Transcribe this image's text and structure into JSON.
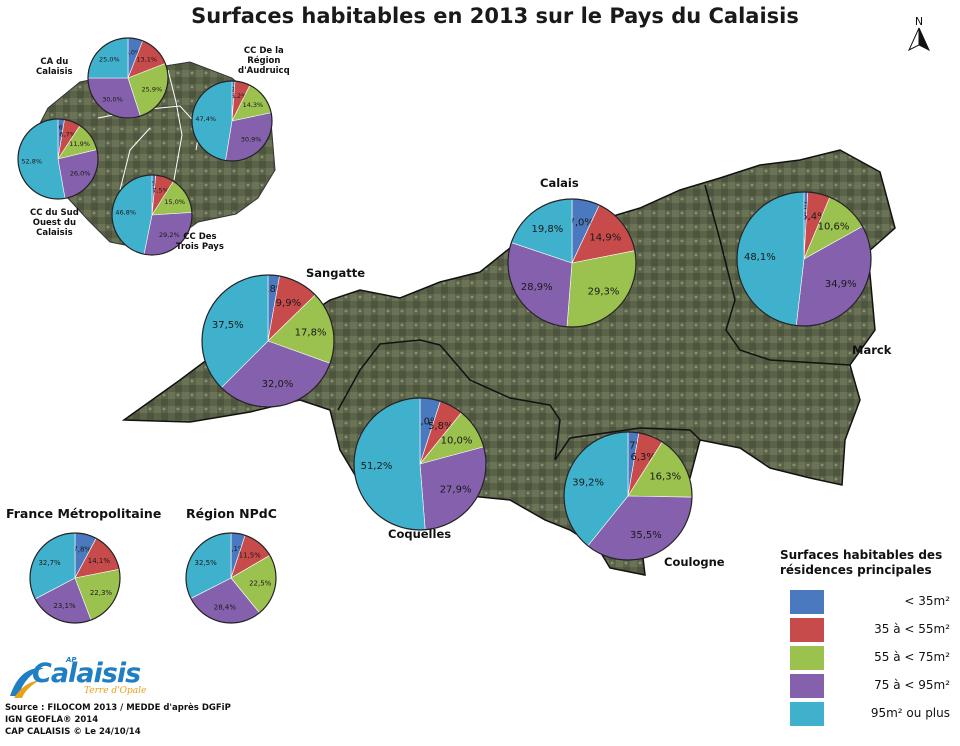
{
  "title": "Surfaces habitables en 2013 sur le Pays du Calaisis",
  "north_label": "N",
  "colors": {
    "lt35": "#4a79c0",
    "c35_55": "#c84b4b",
    "c55_75": "#9bc14e",
    "c75_95": "#8560ac",
    "gt95": "#3fb1cc",
    "map_dark": "#4f5740",
    "map_light": "#7c8468"
  },
  "legend": {
    "title_line1": "Surfaces habitables des",
    "title_line2": "résidences principales",
    "items": [
      {
        "label": "< 35m²",
        "color": "#4a79c0"
      },
      {
        "label": "35 à < 55m²",
        "color": "#c84b4b"
      },
      {
        "label": "55 à < 75m²",
        "color": "#9bc14e"
      },
      {
        "label": "75 à < 95m²",
        "color": "#8560ac"
      },
      {
        "label": "95m² ou plus",
        "color": "#3fb1cc"
      }
    ]
  },
  "source": {
    "line1": "Source : FILOCOM 2013 / MEDDE d'après DGFiP",
    "line2": "IGN GEOFLA® 2014",
    "line3": "CAP CALAISIS © Le 24/10/14"
  },
  "logo": {
    "prefix": "AP",
    "name": "Calaisis",
    "tagline": "Terre d'Opale"
  },
  "chart_data": {
    "type": "pie",
    "categories": [
      "< 35m²",
      "35 à < 55m²",
      "55 à < 75m²",
      "75 à < 95m²",
      "95m² ou plus"
    ],
    "pies": [
      {
        "name": "CA du Calaisis",
        "label_lines": [
          "CA du",
          "Calaisis"
        ],
        "values": [
          6.0,
          13.1,
          25.9,
          30.0,
          25.0
        ],
        "labels": [
          "6,0%",
          "13,1%",
          "25,9%",
          "30,0%",
          "25,0%"
        ]
      },
      {
        "name": "CC De la Région d'Audruicq",
        "label_lines": [
          "CC De la",
          "Région",
          "d'Audruicq"
        ],
        "values": [
          1.2,
          6.2,
          14.3,
          30.9,
          47.4
        ],
        "labels": [
          "1,2%",
          "6,2%",
          "14,3%",
          "30,9%",
          "47,4%"
        ]
      },
      {
        "name": "CC du Sud Ouest du Calaisis",
        "label_lines": [
          "CC du Sud",
          "Ouest du",
          "Calaisis"
        ],
        "values": [
          2.6,
          6.7,
          11.9,
          26.0,
          52.8
        ],
        "labels": [
          "2,6%",
          "6,7%",
          "11,9%",
          "26,0%",
          "52,8%"
        ]
      },
      {
        "name": "CC Des Trois Pays",
        "label_lines": [
          "CC Des",
          "Trois Pays"
        ],
        "values": [
          1.5,
          7.5,
          15.0,
          29.2,
          46.8
        ],
        "labels": [
          "1,5%",
          "7,5%",
          "15,0%",
          "29,2%",
          "46,8%"
        ]
      },
      {
        "name": "Calais",
        "label_lines": [
          "Calais"
        ],
        "values": [
          7.0,
          14.9,
          29.3,
          28.9,
          19.8
        ],
        "labels": [
          "7,0%",
          "14,9%",
          "29,3%",
          "28,9%",
          "19,8%"
        ]
      },
      {
        "name": "Marck",
        "label_lines": [
          "Marck"
        ],
        "values": [
          0.9,
          5.4,
          10.6,
          34.9,
          48.1
        ],
        "labels": [
          "0,9%",
          "5,4%",
          "10,6%",
          "34,9%",
          "48,1%"
        ]
      },
      {
        "name": "Sangatte",
        "label_lines": [
          "Sangatte"
        ],
        "values": [
          2.8,
          9.9,
          17.8,
          32.0,
          37.5
        ],
        "labels": [
          "2,8%",
          "9,9%",
          "17,8%",
          "32,0%",
          "37,5%"
        ]
      },
      {
        "name": "Coquelles",
        "label_lines": [
          "Coquelles"
        ],
        "values": [
          5.0,
          5.8,
          10.0,
          27.9,
          51.2
        ],
        "labels": [
          "5,0%",
          "5,8%",
          "10,0%",
          "27,9%",
          "51,2%"
        ]
      },
      {
        "name": "Coulogne",
        "label_lines": [
          "Coulogne"
        ],
        "values": [
          2.7,
          6.3,
          16.3,
          35.5,
          39.2
        ],
        "labels": [
          "2,7%",
          "6,3%",
          "16,3%",
          "35,5%",
          "39,2%"
        ]
      },
      {
        "name": "France Métropolitaine",
        "label_lines": [
          "France Métropolitaine"
        ],
        "values": [
          7.8,
          14.1,
          22.3,
          23.1,
          32.7
        ],
        "labels": [
          "7,8%",
          "14,1%",
          "22,3%",
          "23,1%",
          "32,7%"
        ]
      },
      {
        "name": "Région NPdC",
        "label_lines": [
          "Région NPdC"
        ],
        "values": [
          5.1,
          11.5,
          22.5,
          28.4,
          32.5
        ],
        "labels": [
          "5,1%",
          "11,5%",
          "22,5%",
          "28,4%",
          "32,5%"
        ]
      }
    ]
  }
}
